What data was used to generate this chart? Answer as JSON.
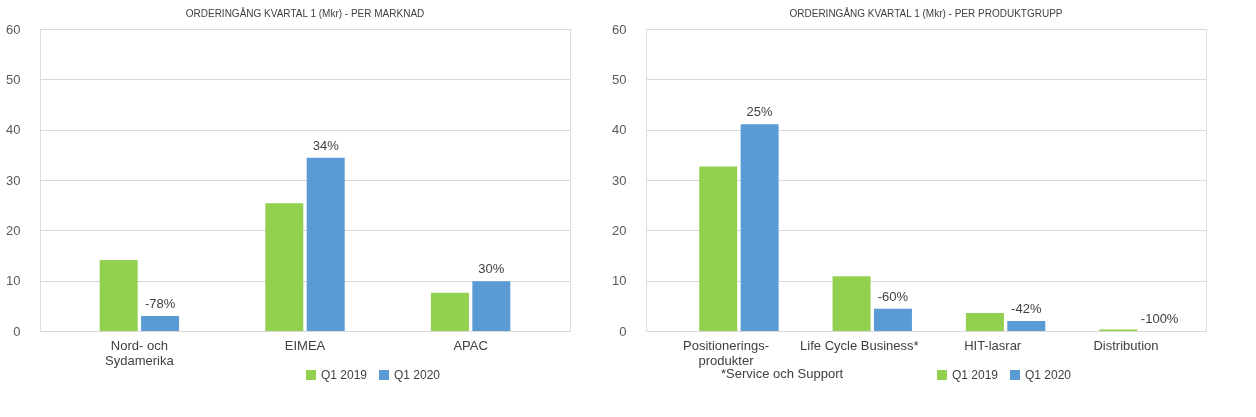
{
  "chart_data": [
    {
      "type": "bar",
      "title": "ORDERINGÅNG  KVARTAL 1 (Mkr) - PER MARKNAD",
      "categories": [
        "Nord- och\nSydamerika",
        "EIMEA",
        "APAC"
      ],
      "series": [
        {
          "name": "Q1 2019",
          "color": "#92d050",
          "values": [
            14.1,
            25.4,
            7.6
          ]
        },
        {
          "name": "Q1 2020",
          "color": "#5b9bd5",
          "values": [
            3.0,
            34.4,
            9.9
          ]
        }
      ],
      "annotations": [
        {
          "text": "-78%",
          "x": "Nord- och\nSydamerika",
          "y": 3.0
        },
        {
          "text": "34%",
          "x": "EIMEA",
          "y": 34.4
        },
        {
          "text": "30%",
          "x": "APAC",
          "y": 9.9
        }
      ],
      "ylim": [
        0,
        60
      ],
      "yticks": [
        0,
        10,
        20,
        30,
        40,
        50,
        60
      ],
      "grid": "y",
      "legend": "bottom"
    },
    {
      "type": "bar",
      "title": "ORDERINGÅNG  KVARTAL 1 (Mkr) - PER PRODUKTGRUPP",
      "categories": [
        "Positionerings-\nprodukter",
        "Life Cycle Business*",
        "HIT-lasrar",
        "Distribution"
      ],
      "series": [
        {
          "name": "Q1 2019",
          "color": "#92d050",
          "values": [
            32.7,
            10.9,
            3.6,
            0.3
          ]
        },
        {
          "name": "Q1 2020",
          "color": "#5b9bd5",
          "values": [
            41.1,
            4.4,
            2.0,
            0
          ]
        }
      ],
      "ylim": [
        0,
        60
      ],
      "yticks": [
        0,
        10,
        20,
        30,
        40,
        50,
        60
      ],
      "grid": "y",
      "legend": "bottom",
      "annotations": [
        "25%",
        "-60%",
        "-42%",
        {
          "text": "-100%",
          "x": "Distribution",
          "y": 0
        },
        "*Service och Support"
      ]
    }
  ]
}
